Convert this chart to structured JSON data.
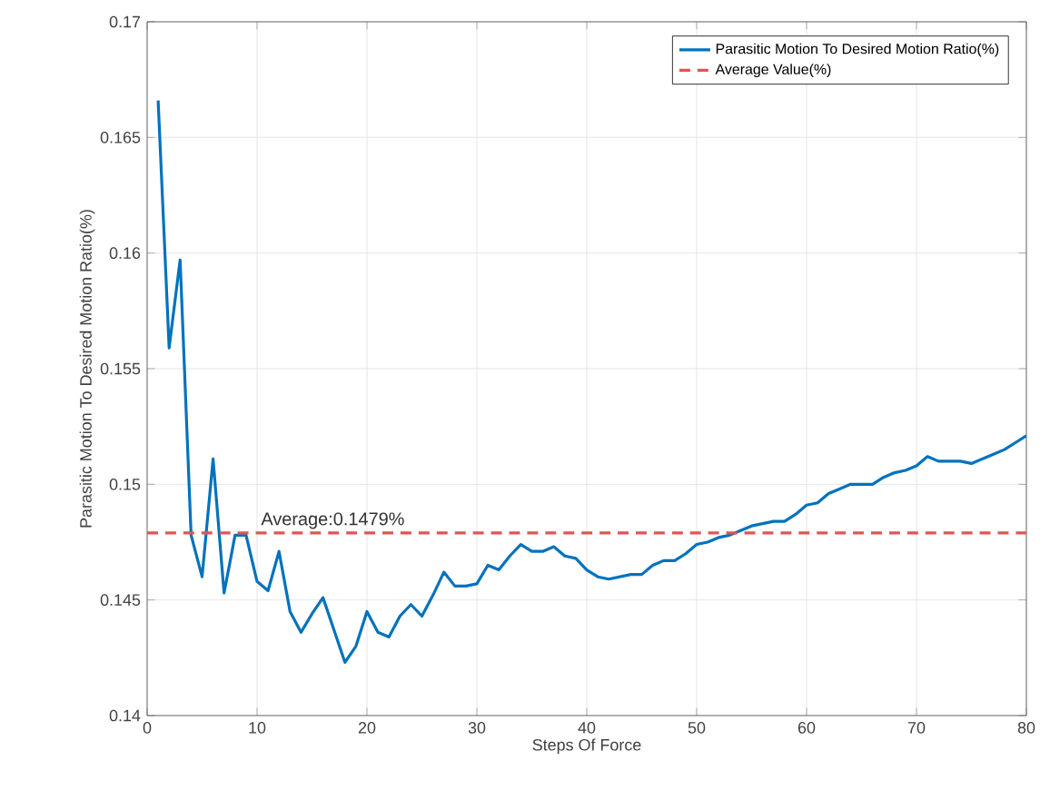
{
  "chart_data": {
    "type": "line",
    "xlabel": "Steps Of Force",
    "ylabel": "Parasitic Motion To Desired Motion Ratio(%)",
    "x": [
      1,
      2,
      3,
      4,
      5,
      6,
      7,
      8,
      9,
      10,
      11,
      12,
      13,
      14,
      15,
      16,
      17,
      18,
      19,
      20,
      21,
      22,
      23,
      24,
      25,
      26,
      27,
      28,
      29,
      30,
      31,
      32,
      33,
      34,
      35,
      36,
      37,
      38,
      39,
      40,
      41,
      42,
      43,
      44,
      45,
      46,
      47,
      48,
      49,
      50,
      51,
      52,
      53,
      54,
      55,
      56,
      57,
      58,
      59,
      60,
      61,
      62,
      63,
      64,
      65,
      66,
      67,
      68,
      69,
      70,
      71,
      72,
      73,
      74,
      75,
      76,
      77,
      78,
      79,
      80
    ],
    "series": [
      {
        "name": "Parasitic Motion To Desired Motion Ratio(%)",
        "color": "#0072bd",
        "values": [
          0.1666,
          0.1559,
          0.1597,
          0.1478,
          0.146,
          0.1511,
          0.1453,
          0.1478,
          0.1478,
          0.1458,
          0.1454,
          0.1471,
          0.1445,
          0.1436,
          0.1444,
          0.1451,
          0.1437,
          0.1423,
          0.143,
          0.1445,
          0.1436,
          0.1434,
          0.1443,
          0.1448,
          0.1443,
          0.1452,
          0.1462,
          0.1456,
          0.1456,
          0.1457,
          0.1465,
          0.1463,
          0.1469,
          0.1474,
          0.1471,
          0.1471,
          0.1473,
          0.1469,
          0.1468,
          0.1463,
          0.146,
          0.1459,
          0.146,
          0.1461,
          0.1461,
          0.1465,
          0.1467,
          0.1467,
          0.147,
          0.1474,
          0.1475,
          0.1477,
          0.1478,
          0.148,
          0.1482,
          0.1483,
          0.1484,
          0.1484,
          0.1487,
          0.1491,
          0.1492,
          0.1496,
          0.1498,
          0.15,
          0.15,
          0.15,
          0.1503,
          0.1505,
          0.1506,
          0.1508,
          0.1512,
          0.151,
          0.151,
          0.151,
          0.1509,
          0.1511,
          0.1513,
          0.1515,
          0.1518,
          0.1521
        ]
      }
    ],
    "ref_lines": [
      {
        "axis": "y",
        "value": 0.1479,
        "label": "Average Value(%)",
        "color": "#e05555",
        "line_style": "dashed"
      }
    ],
    "annotations": [
      {
        "text": "Average:0.1479%",
        "x": 10,
        "y": 0.1479
      }
    ],
    "xlim": [
      0,
      80
    ],
    "ylim": [
      0.14,
      0.17
    ],
    "xticks": [
      0,
      10,
      20,
      30,
      40,
      50,
      60,
      70,
      80
    ],
    "yticks": [
      0.14,
      0.145,
      0.15,
      0.155,
      0.16,
      0.165,
      0.17
    ],
    "grid": true,
    "legend": "top right",
    "marker": "none",
    "line_style": "solid"
  }
}
